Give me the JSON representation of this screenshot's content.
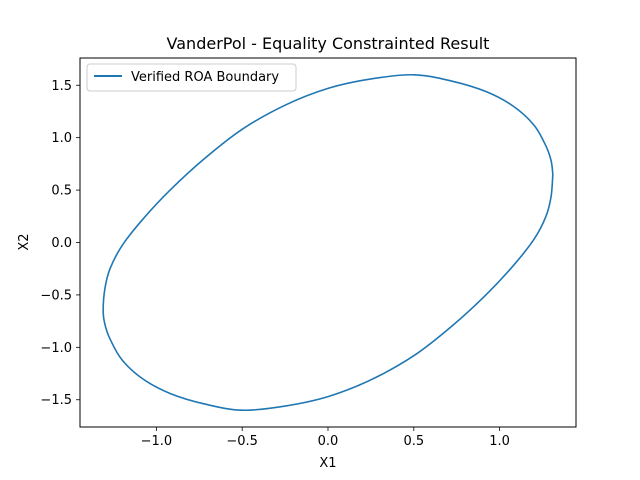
{
  "chart_data": {
    "type": "line",
    "title": "VanderPol - Equality Constrainted Result",
    "xlabel": "X1",
    "ylabel": "X2",
    "xlim": [
      -1.445,
      1.445
    ],
    "ylim": [
      -1.76,
      1.76
    ],
    "xticks": [
      -1.0,
      -0.5,
      0.0,
      0.5,
      1.0
    ],
    "xtick_labels": [
      "−1.0",
      "−0.5",
      "0.0",
      "0.5",
      "1.0"
    ],
    "yticks": [
      -1.5,
      -1.0,
      -0.5,
      0.0,
      0.5,
      1.0,
      1.5
    ],
    "ytick_labels": [
      "−1.5",
      "−1.0",
      "−0.5",
      "0.0",
      "0.5",
      "1.0",
      "1.5"
    ],
    "grid": false,
    "legend_position": "top-left",
    "series": [
      {
        "name": "Verified ROA Boundary",
        "color": "#1f77b4",
        "x": [
          1.31,
          1.3,
          1.27,
          1.2,
          1.08,
          0.92,
          0.72,
          0.5,
          0.25,
          0.0,
          -0.25,
          -0.5,
          -0.72,
          -0.92,
          -1.08,
          -1.2,
          -1.27,
          -1.3,
          -1.31,
          -1.3,
          -1.27,
          -1.2,
          -1.08,
          -0.92,
          -0.72,
          -0.5,
          -0.25,
          0.0,
          0.25,
          0.5,
          0.72,
          0.92,
          1.08,
          1.2,
          1.27,
          1.3,
          1.31
        ],
        "y": [
          0.65,
          0.44,
          0.25,
          0.03,
          -0.22,
          -0.5,
          -0.8,
          -1.08,
          -1.31,
          -1.47,
          -1.56,
          -1.6,
          -1.54,
          -1.44,
          -1.3,
          -1.12,
          -0.92,
          -0.78,
          -0.65,
          -0.44,
          -0.25,
          -0.03,
          0.22,
          0.5,
          0.8,
          1.08,
          1.31,
          1.47,
          1.56,
          1.6,
          1.54,
          1.44,
          1.3,
          1.12,
          0.92,
          0.78,
          0.65
        ]
      }
    ]
  }
}
